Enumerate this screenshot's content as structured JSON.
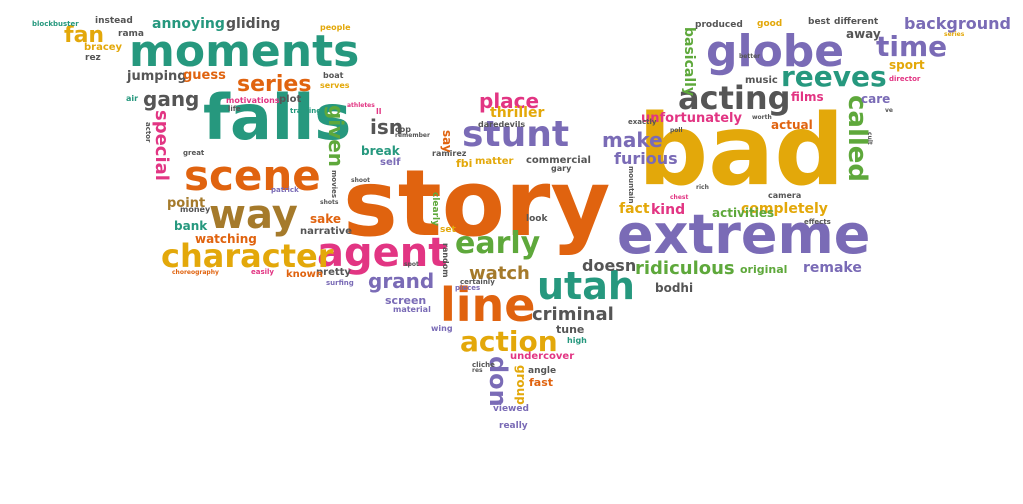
{
  "palette": {
    "orange": "#e0630f",
    "gold": "#e3a80a",
    "teal": "#26987e",
    "purple": "#7a6bb6",
    "pink": "#e23583",
    "green": "#5ea83b",
    "gray": "#555555",
    "brown": "#a57a2b"
  },
  "words": [
    {
      "text": "story",
      "color": "orange"
    },
    {
      "text": "bad",
      "color": "gold"
    },
    {
      "text": "extreme",
      "color": "purple"
    },
    {
      "text": "falls",
      "color": "teal"
    },
    {
      "text": "moments",
      "color": "teal"
    },
    {
      "text": "globe",
      "color": "purple"
    },
    {
      "text": "scene",
      "color": "orange"
    },
    {
      "text": "way",
      "color": "brown"
    },
    {
      "text": "agent",
      "color": "pink"
    },
    {
      "text": "line",
      "color": "orange"
    },
    {
      "text": "utah",
      "color": "teal"
    },
    {
      "text": "character",
      "color": "gold"
    },
    {
      "text": "acting",
      "color": "gray"
    },
    {
      "text": "stunt",
      "color": "purple"
    },
    {
      "text": "early",
      "color": "green"
    },
    {
      "text": "action",
      "color": "gold"
    },
    {
      "text": "time",
      "color": "purple"
    },
    {
      "text": "reeves",
      "color": "teal"
    },
    {
      "text": "called",
      "color": "green"
    },
    {
      "text": "series",
      "color": "orange"
    },
    {
      "text": "gang",
      "color": "gray"
    },
    {
      "text": "place",
      "color": "pink"
    },
    {
      "text": "make",
      "color": "purple"
    },
    {
      "text": "grand",
      "color": "purple"
    },
    {
      "text": "don",
      "color": "purple"
    },
    {
      "text": "criminal",
      "color": "gray"
    },
    {
      "text": "watch",
      "color": "brown"
    },
    {
      "text": "ridiculous",
      "color": "green"
    },
    {
      "text": "given",
      "color": "green"
    },
    {
      "text": "special",
      "color": "pink"
    },
    {
      "text": "isn",
      "color": "gray"
    },
    {
      "text": "fan",
      "color": "gold"
    },
    {
      "text": "background",
      "color": "purple"
    },
    {
      "text": "furious",
      "color": "purple"
    },
    {
      "text": "doesn",
      "color": "gray"
    },
    {
      "text": "completely",
      "color": "gold"
    },
    {
      "text": "remake",
      "color": "purple"
    },
    {
      "text": "annoying",
      "color": "teal"
    },
    {
      "text": "gliding",
      "color": "gray"
    },
    {
      "text": "jumping",
      "color": "gray"
    },
    {
      "text": "guess",
      "color": "orange"
    },
    {
      "text": "thriller",
      "color": "gold"
    },
    {
      "text": "unfortunately",
      "color": "pink"
    },
    {
      "text": "basically",
      "color": "green"
    },
    {
      "text": "away",
      "color": "gray"
    },
    {
      "text": "films",
      "color": "pink"
    },
    {
      "text": "care",
      "color": "purple"
    },
    {
      "text": "sport",
      "color": "gold"
    },
    {
      "text": "actual",
      "color": "orange"
    },
    {
      "text": "fact",
      "color": "gold"
    },
    {
      "text": "kind",
      "color": "pink"
    },
    {
      "text": "activities",
      "color": "green"
    },
    {
      "text": "original",
      "color": "green"
    },
    {
      "text": "bodhi",
      "color": "gray"
    },
    {
      "text": "tune",
      "color": "gray"
    },
    {
      "text": "screen",
      "color": "purple"
    },
    {
      "text": "undercover",
      "color": "pink"
    },
    {
      "text": "group",
      "color": "gold"
    },
    {
      "text": "fast",
      "color": "orange"
    },
    {
      "text": "angle",
      "color": "gray"
    },
    {
      "text": "viewed",
      "color": "purple"
    },
    {
      "text": "really",
      "color": "purple"
    },
    {
      "text": "point",
      "color": "brown"
    },
    {
      "text": "bank",
      "color": "teal"
    },
    {
      "text": "watching",
      "color": "orange"
    },
    {
      "text": "sake",
      "color": "orange"
    },
    {
      "text": "narrative",
      "color": "gray"
    },
    {
      "text": "pretty",
      "color": "gray"
    },
    {
      "text": "known",
      "color": "orange"
    },
    {
      "text": "break",
      "color": "teal"
    },
    {
      "text": "self",
      "color": "purple"
    },
    {
      "text": "say",
      "color": "orange"
    },
    {
      "text": "fbi",
      "color": "gold"
    },
    {
      "text": "matter",
      "color": "gold"
    },
    {
      "text": "commercial",
      "color": "gray"
    },
    {
      "text": "look",
      "color": "gray"
    },
    {
      "text": "set",
      "color": "gold"
    },
    {
      "text": "music",
      "color": "gray"
    },
    {
      "text": "produced",
      "color": "gray"
    },
    {
      "text": "good",
      "color": "gold"
    },
    {
      "text": "best",
      "color": "gray"
    },
    {
      "text": "different",
      "color": "gray"
    },
    {
      "text": "instead",
      "color": "gray"
    },
    {
      "text": "people",
      "color": "gold"
    },
    {
      "text": "boat",
      "color": "gray"
    },
    {
      "text": "serves",
      "color": "gold"
    },
    {
      "text": "motivations",
      "color": "pink"
    },
    {
      "text": "plot",
      "color": "gray"
    },
    {
      "text": "bracey",
      "color": "gold"
    },
    {
      "text": "rez",
      "color": "gray"
    },
    {
      "text": "rama",
      "color": "gray"
    },
    {
      "text": "air",
      "color": "teal"
    },
    {
      "text": "money",
      "color": "gray"
    },
    {
      "text": "camera",
      "color": "gray"
    },
    {
      "text": "effects",
      "color": "gray"
    },
    {
      "text": "director",
      "color": "pink"
    },
    {
      "text": "material",
      "color": "purple"
    },
    {
      "text": "wing",
      "color": "purple"
    },
    {
      "text": "high",
      "color": "teal"
    },
    {
      "text": "clearly",
      "color": "green"
    },
    {
      "text": "random",
      "color": "gray"
    },
    {
      "text": "pieces",
      "color": "purple"
    },
    {
      "text": "certainly",
      "color": "gray"
    },
    {
      "text": "surfing",
      "color": "purple"
    },
    {
      "text": "easily",
      "color": "pink"
    },
    {
      "text": "choreography",
      "color": "orange"
    },
    {
      "text": "patrick",
      "color": "purple"
    },
    {
      "text": "movies",
      "color": "gray"
    },
    {
      "text": "ramirez",
      "color": "gray"
    },
    {
      "text": "daredevils",
      "color": "gray"
    },
    {
      "text": "gary",
      "color": "gray"
    },
    {
      "text": "cop",
      "color": "gray"
    },
    {
      "text": "remember",
      "color": "gray"
    },
    {
      "text": "exactly",
      "color": "gray"
    },
    {
      "text": "training",
      "color": "teal"
    },
    {
      "text": "athletes",
      "color": "pink"
    },
    {
      "text": "ll",
      "color": "pink"
    },
    {
      "text": "life",
      "color": "gray"
    },
    {
      "text": "great",
      "color": "gray"
    },
    {
      "text": "actor",
      "color": "gray"
    },
    {
      "text": "blockbuster",
      "color": "teal"
    },
    {
      "text": "better",
      "color": "gray"
    },
    {
      "text": "series",
      "color": "gold"
    },
    {
      "text": "mountain",
      "color": "gray"
    },
    {
      "text": "shoot",
      "color": "gray"
    },
    {
      "text": "cliche",
      "color": "gray"
    },
    {
      "text": "res",
      "color": "gray"
    },
    {
      "text": "shots",
      "color": "gray"
    },
    {
      "text": "worth",
      "color": "gray"
    },
    {
      "text": "spot",
      "color": "gray"
    },
    {
      "text": "chest",
      "color": "pink"
    },
    {
      "text": "cult",
      "color": "gray"
    },
    {
      "text": "ve",
      "color": "gray"
    },
    {
      "text": "rich",
      "color": "gray"
    },
    {
      "text": "poll",
      "color": "gray"
    }
  ]
}
